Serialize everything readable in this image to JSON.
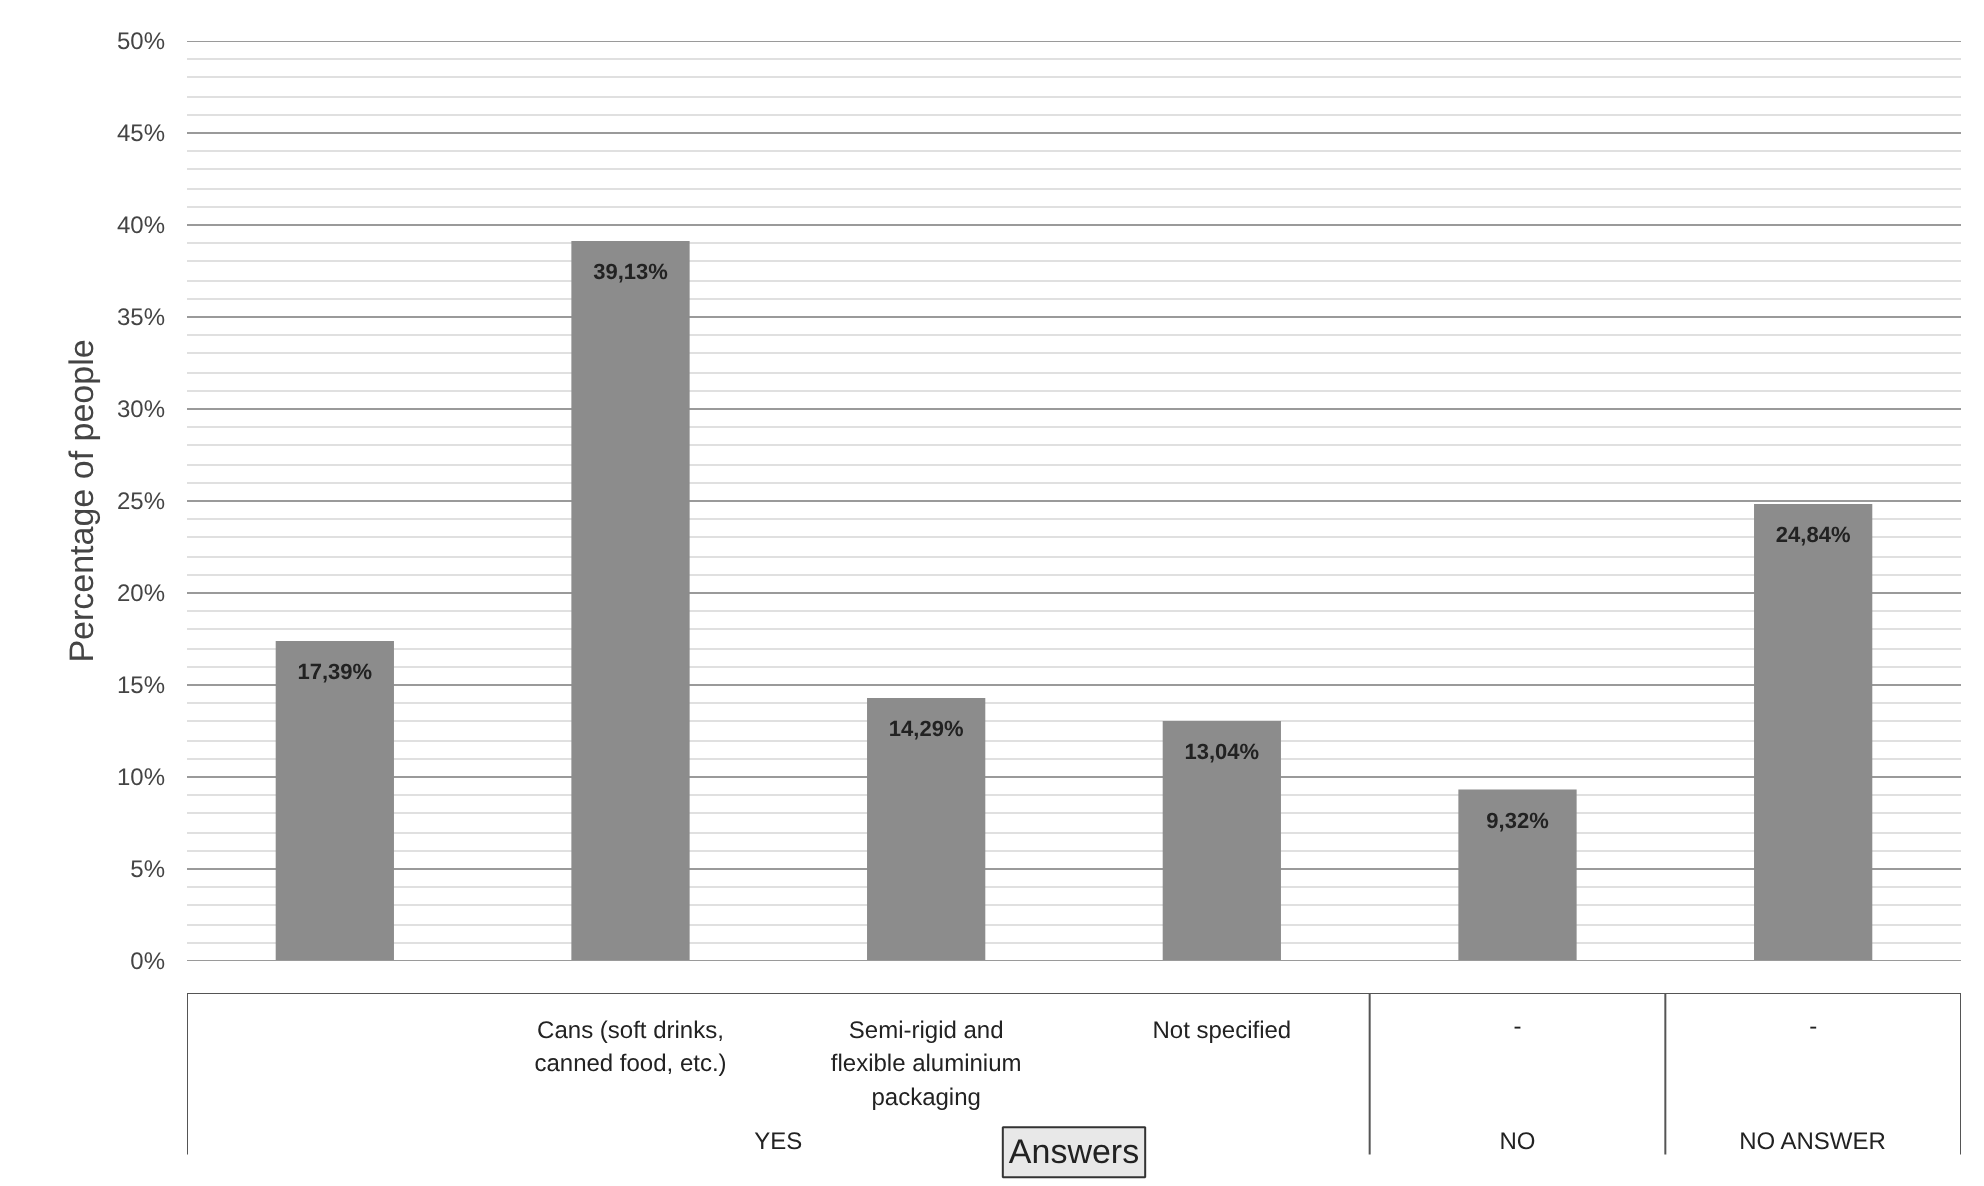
{
  "chart_data": {
    "type": "bar",
    "xlabel": "Answers",
    "ylabel": "Percentage of people",
    "categories": [
      null,
      "Cans (soft drinks, canned food, etc.)",
      "Semi-rigid and flexible aluminium packaging",
      "Not specified",
      "-",
      "-"
    ],
    "values": [
      17.39,
      39.13,
      14.29,
      13.04,
      9.32,
      24.84
    ],
    "value_labels": [
      "17,39%",
      "39,13%",
      "14,29%",
      "13,04%",
      "9,32%",
      "24,84%"
    ],
    "color": "#8c8c8c",
    "ylim": [
      0,
      50
    ],
    "yticks": [
      {
        "value": 0,
        "label": "0%"
      },
      {
        "value": 5,
        "label": "5%"
      },
      {
        "value": 10,
        "label": "10%"
      },
      {
        "value": 15,
        "label": "15%"
      },
      {
        "value": 20,
        "label": "20%"
      },
      {
        "value": 25,
        "label": "25%"
      },
      {
        "value": 30,
        "label": "30%"
      },
      {
        "value": 35,
        "label": "35%"
      },
      {
        "value": 40,
        "label": "40%"
      },
      {
        "value": 45,
        "label": "45%"
      },
      {
        "value": 50,
        "label": "50%"
      }
    ],
    "grid": "y",
    "annotations": [
      "YES",
      "NO",
      "NO ANSWER"
    ]
  }
}
